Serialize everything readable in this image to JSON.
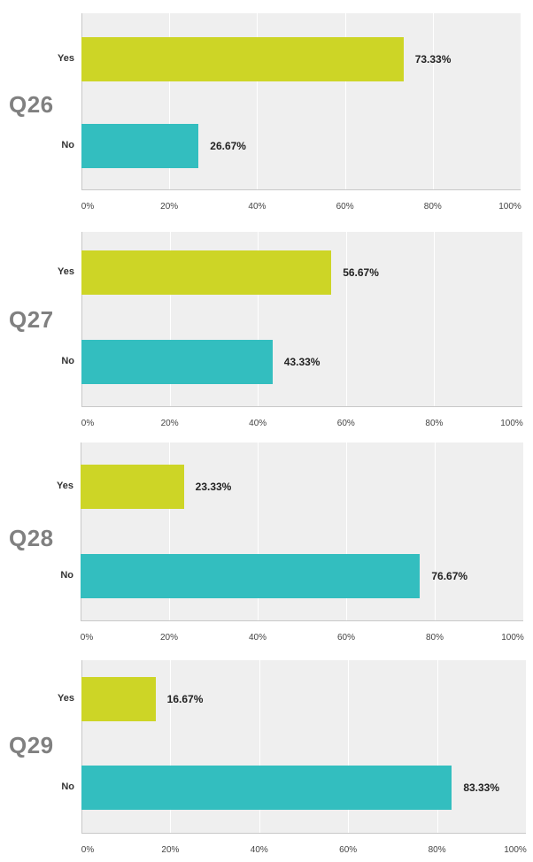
{
  "chart_data": [
    {
      "type": "bar",
      "orientation": "horizontal",
      "title": "Q26",
      "categories": [
        "Yes",
        "No"
      ],
      "values": [
        73.33,
        26.67
      ],
      "value_labels": [
        "73.33%",
        "26.67%"
      ],
      "colors": [
        "#cdd526",
        "#33bebf"
      ],
      "xlim": [
        0,
        100
      ],
      "ticks": [
        "0%",
        "20%",
        "40%",
        "60%",
        "80%",
        "100%"
      ],
      "grid": true
    },
    {
      "type": "bar",
      "orientation": "horizontal",
      "title": "Q27",
      "categories": [
        "Yes",
        "No"
      ],
      "values": [
        56.67,
        43.33
      ],
      "value_labels": [
        "56.67%",
        "43.33%"
      ],
      "colors": [
        "#cdd526",
        "#33bebf"
      ],
      "xlim": [
        0,
        100
      ],
      "ticks": [
        "0%",
        "20%",
        "40%",
        "60%",
        "80%",
        "100%"
      ],
      "grid": true
    },
    {
      "type": "bar",
      "orientation": "horizontal",
      "title": "Q28",
      "categories": [
        "Yes",
        "No"
      ],
      "values": [
        23.33,
        76.67
      ],
      "value_labels": [
        "23.33%",
        "76.67%"
      ],
      "colors": [
        "#cdd526",
        "#33bebf"
      ],
      "xlim": [
        0,
        100
      ],
      "ticks": [
        "0%",
        "20%",
        "40%",
        "60%",
        "80%",
        "100%"
      ],
      "grid": true
    },
    {
      "type": "bar",
      "orientation": "horizontal",
      "title": "Q29",
      "categories": [
        "Yes",
        "No"
      ],
      "values": [
        16.67,
        83.33
      ],
      "value_labels": [
        "16.67%",
        "83.33%"
      ],
      "colors": [
        "#cdd526",
        "#33bebf"
      ],
      "xlim": [
        0,
        100
      ],
      "ticks": [
        "0%",
        "20%",
        "40%",
        "60%",
        "80%",
        "100%"
      ],
      "grid": true
    }
  ]
}
